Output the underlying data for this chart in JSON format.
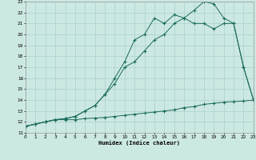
{
  "bg_color": "#cce8e3",
  "grid_color": "#aad0ca",
  "line_color": "#1a6b5a",
  "xlim": [
    0,
    23
  ],
  "ylim": [
    11,
    23
  ],
  "xticks": [
    0,
    1,
    2,
    3,
    4,
    5,
    6,
    7,
    8,
    9,
    10,
    11,
    12,
    13,
    14,
    15,
    16,
    17,
    18,
    19,
    20,
    21,
    22,
    23
  ],
  "yticks": [
    11,
    12,
    13,
    14,
    15,
    16,
    17,
    18,
    19,
    20,
    21,
    22,
    23
  ],
  "xlabel": "Humidex (Indice chaleur)",
  "line1_x": [
    0,
    1,
    2,
    3,
    4,
    5,
    6,
    7,
    8,
    9,
    10,
    11,
    12,
    13,
    14,
    15,
    16,
    17,
    18,
    19,
    20,
    21,
    22,
    23
  ],
  "line1_y": [
    11.6,
    11.8,
    12.0,
    12.2,
    12.2,
    12.2,
    12.3,
    12.35,
    12.4,
    12.5,
    12.6,
    12.7,
    12.8,
    12.9,
    13.0,
    13.1,
    13.3,
    13.4,
    13.6,
    13.7,
    13.8,
    13.85,
    13.9,
    14.0
  ],
  "line2_x": [
    0,
    1,
    2,
    3,
    4,
    5,
    6,
    7,
    8,
    9,
    10,
    11,
    12,
    13,
    14,
    15,
    16,
    17,
    18,
    19,
    20,
    21,
    22,
    23
  ],
  "line2_y": [
    11.6,
    11.8,
    12.0,
    12.2,
    12.3,
    12.5,
    13.0,
    13.5,
    14.5,
    15.5,
    17.0,
    17.5,
    18.5,
    19.5,
    20.0,
    21.0,
    21.5,
    21.0,
    21.0,
    20.5,
    21.0,
    21.0,
    17.0,
    14.0
  ],
  "line3_x": [
    0,
    1,
    2,
    3,
    4,
    5,
    6,
    7,
    8,
    9,
    10,
    11,
    12,
    13,
    14,
    15,
    16,
    17,
    18,
    19,
    20,
    21,
    22,
    23
  ],
  "line3_y": [
    11.6,
    11.8,
    12.0,
    12.2,
    12.3,
    12.5,
    13.0,
    13.5,
    14.5,
    16.0,
    17.5,
    19.5,
    20.0,
    21.5,
    21.0,
    21.8,
    21.5,
    22.2,
    23.0,
    22.8,
    21.5,
    21.0,
    17.0,
    14.0
  ]
}
